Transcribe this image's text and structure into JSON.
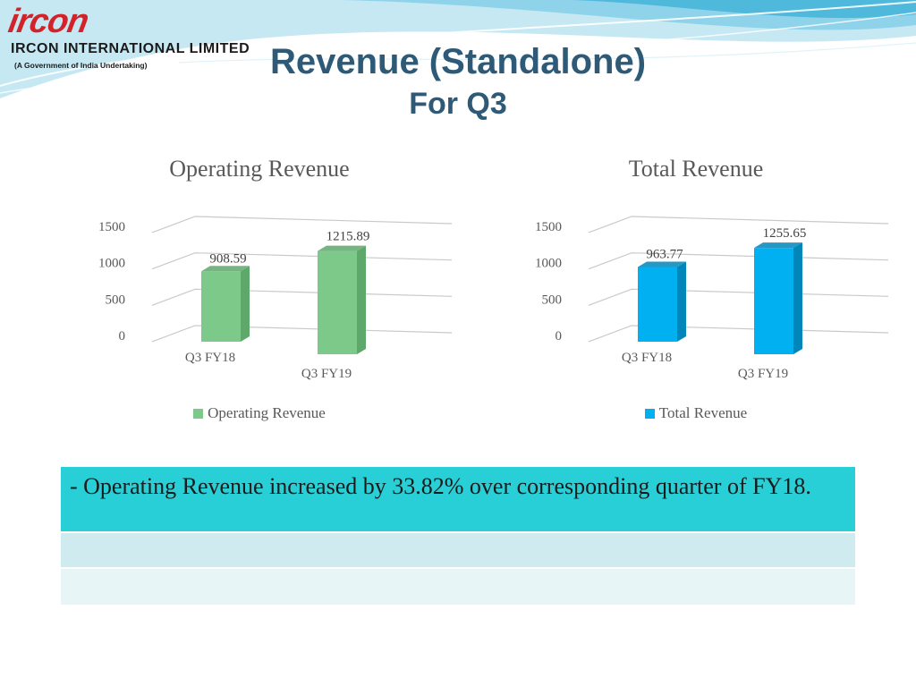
{
  "header": {
    "logo_mark": "ircon",
    "company_name": "IRCON INTERNATIONAL LIMITED",
    "company_sub": "(A Government of India Undertaking)",
    "title_line1": "Revenue (Standalone)",
    "title_line2": "For Q3"
  },
  "colors": {
    "operating": "#7cc98a",
    "operating_side": "#5ea86c",
    "total": "#00b0f0",
    "total_side": "#0086b8",
    "title": "#2e5a78",
    "note_bg": "#29cfd6"
  },
  "chart_data": [
    {
      "type": "bar",
      "title": "Operating Revenue",
      "categories": [
        "Q3 FY18",
        "Q3 FY19"
      ],
      "series": [
        {
          "name": "Operating Revenue",
          "values": [
            908.59,
            1215.89
          ]
        }
      ],
      "data_labels": [
        "908.59",
        "1215.89"
      ],
      "yticks": [
        "0",
        "500",
        "1000",
        "1500"
      ],
      "ylim": [
        0,
        1500
      ],
      "legend": "bottom",
      "grid": true
    },
    {
      "type": "bar",
      "title": "Total Revenue",
      "categories": [
        "Q3 FY18",
        "Q3 FY19"
      ],
      "series": [
        {
          "name": "Total Revenue",
          "values": [
            963.77,
            1255.65
          ]
        }
      ],
      "data_labels": [
        "963.77",
        "1255.65"
      ],
      "yticks": [
        "0",
        "500",
        "1000",
        "1500"
      ],
      "ylim": [
        0,
        1500
      ],
      "legend": "bottom",
      "grid": true
    }
  ],
  "note": {
    "text": "- Operating Revenue increased by 33.82% over corresponding quarter of FY18."
  }
}
